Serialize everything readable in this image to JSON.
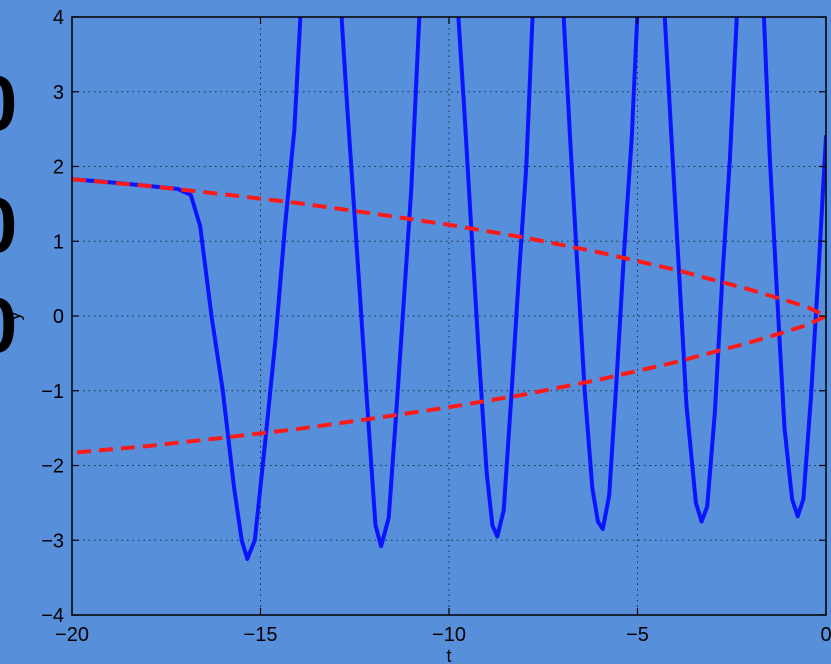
{
  "chart_data": {
    "type": "line",
    "title": "",
    "xlabel": "t",
    "ylabel": "y",
    "xlim": [
      -20,
      0
    ],
    "ylim": [
      -4,
      4
    ],
    "grid": true,
    "x_ticks": [
      -20,
      -15,
      -10,
      -5,
      0
    ],
    "x_tick_labels": [
      "−20",
      "−15",
      "−10",
      "−5",
      "0"
    ],
    "y_ticks": [
      -4,
      -3,
      -2,
      -1,
      0,
      1,
      2,
      3,
      4
    ],
    "y_tick_labels": [
      "−4",
      "−3",
      "−2",
      "−1",
      "0",
      "1",
      "2",
      "3",
      "4"
    ],
    "side_glyphs": [
      "0",
      "0",
      "0"
    ],
    "series": [
      {
        "style": "solid",
        "color": "#0a14ff",
        "points": [
          [
            -20,
            1.83
          ],
          [
            -19,
            1.79
          ],
          [
            -18,
            1.74
          ],
          [
            -17.2,
            1.7
          ],
          [
            -16.85,
            1.62
          ],
          [
            -16.6,
            1.2
          ],
          [
            -16.3,
            0
          ],
          [
            -16.0,
            -1.0
          ],
          [
            -15.7,
            -2.3
          ],
          [
            -15.5,
            -3.0
          ],
          [
            -15.35,
            -3.25
          ],
          [
            -15.15,
            -3.0
          ],
          [
            -14.9,
            -1.8
          ],
          [
            -14.6,
            -0.3
          ],
          [
            -14.35,
            1.2
          ],
          [
            -14.1,
            2.5
          ],
          [
            -13.9,
            4.4
          ],
          null,
          [
            -12.9,
            4.4
          ],
          [
            -12.7,
            2.8
          ],
          [
            -12.5,
            1.3
          ],
          [
            -12.3,
            -0.2
          ],
          [
            -12.1,
            -1.7
          ],
          [
            -11.95,
            -2.8
          ],
          [
            -11.8,
            -3.08
          ],
          [
            -11.6,
            -2.7
          ],
          [
            -11.4,
            -1.3
          ],
          [
            -11.2,
            0.2
          ],
          [
            -11.0,
            1.7
          ],
          [
            -10.75,
            4.4
          ],
          null,
          [
            -9.8,
            4.4
          ],
          [
            -9.6,
            2.8
          ],
          [
            -9.4,
            1.1
          ],
          [
            -9.2,
            -0.6
          ],
          [
            -9.0,
            -2.1
          ],
          [
            -8.85,
            -2.8
          ],
          [
            -8.72,
            -2.95
          ],
          [
            -8.55,
            -2.6
          ],
          [
            -8.35,
            -1.1
          ],
          [
            -8.15,
            0.5
          ],
          [
            -7.95,
            2.0
          ],
          [
            -7.75,
            4.4
          ],
          null,
          [
            -7.0,
            4.4
          ],
          [
            -6.8,
            2.5
          ],
          [
            -6.6,
            0.7
          ],
          [
            -6.4,
            -1.0
          ],
          [
            -6.2,
            -2.3
          ],
          [
            -6.05,
            -2.75
          ],
          [
            -5.92,
            -2.85
          ],
          [
            -5.75,
            -2.4
          ],
          [
            -5.55,
            -0.8
          ],
          [
            -5.35,
            0.9
          ],
          [
            -5.15,
            2.4
          ],
          [
            -4.97,
            4.4
          ],
          null,
          [
            -4.32,
            4.4
          ],
          [
            -4.1,
            2.4
          ],
          [
            -3.9,
            0.6
          ],
          [
            -3.7,
            -1.2
          ],
          [
            -3.45,
            -2.5
          ],
          [
            -3.3,
            -2.75
          ],
          [
            -3.15,
            -2.55
          ],
          [
            -2.95,
            -1.3
          ],
          [
            -2.75,
            0.5
          ],
          [
            -2.55,
            2.1
          ],
          [
            -2.33,
            4.4
          ],
          null,
          [
            -1.68,
            4.4
          ],
          [
            -1.5,
            2.2
          ],
          [
            -1.3,
            0.3
          ],
          [
            -1.1,
            -1.5
          ],
          [
            -0.9,
            -2.45
          ],
          [
            -0.75,
            -2.68
          ],
          [
            -0.6,
            -2.45
          ],
          [
            -0.4,
            -1.1
          ],
          [
            -0.2,
            0.6
          ],
          [
            0,
            2.4
          ]
        ]
      },
      {
        "style": "dashed",
        "color": "#ff1a1a",
        "points": [
          [
            -20,
            1.83
          ],
          [
            -18,
            1.74
          ],
          [
            -16,
            1.63
          ],
          [
            -14,
            1.51
          ],
          [
            -12,
            1.37
          ],
          [
            -10,
            1.22
          ],
          [
            -8,
            1.05
          ],
          [
            -6,
            0.85
          ],
          [
            -4,
            0.62
          ],
          [
            -2,
            0.35
          ],
          [
            -1,
            0.2
          ],
          [
            -0.5,
            0.12
          ],
          [
            0,
            0
          ],
          [
            -0.5,
            -0.12
          ],
          [
            -1,
            -0.2
          ],
          [
            -2,
            -0.35
          ],
          [
            -4,
            -0.62
          ],
          [
            -6,
            -0.85
          ],
          [
            -8,
            -1.05
          ],
          [
            -10,
            -1.22
          ],
          [
            -12,
            -1.37
          ],
          [
            -14,
            -1.51
          ],
          [
            -16,
            -1.63
          ],
          [
            -18,
            -1.74
          ],
          [
            -20,
            -1.83
          ]
        ]
      }
    ]
  }
}
